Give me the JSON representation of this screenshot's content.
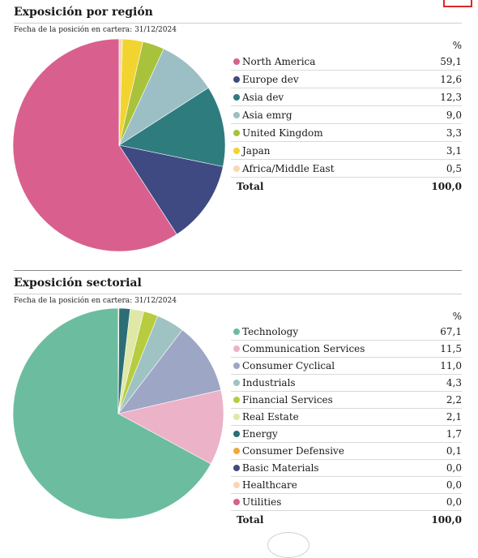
{
  "region": {
    "title": "Exposición por región",
    "date_label": "Fecha de la posición en cartera: 31/12/2024",
    "pct_header": "%",
    "total_label": "Total",
    "total_value": "100,0"
  },
  "sector": {
    "title": "Exposición sectorial",
    "date_label": "Fecha de la posición en cartera: 31/12/2024",
    "pct_header": "%",
    "total_label": "Total",
    "total_value": "100,0"
  },
  "chart_data": [
    {
      "type": "pie",
      "title": "Exposición por región",
      "categories": [
        "North America",
        "Europe dev",
        "Asia dev",
        "Asia emrg",
        "United Kingdom",
        "Japan",
        "Africa/Middle East"
      ],
      "values": [
        59.1,
        12.6,
        12.3,
        9.0,
        3.3,
        3.1,
        0.5
      ],
      "labels": [
        "59,1",
        "12,6",
        "12,3",
        "9,0",
        "3,3",
        "3,1",
        "0,5"
      ],
      "colors": [
        "#d9608e",
        "#3f4a82",
        "#2f7c7e",
        "#9bbfc4",
        "#a9c23c",
        "#f2d431",
        "#f6d8b4"
      ]
    },
    {
      "type": "pie",
      "title": "Exposición sectorial",
      "categories": [
        "Technology",
        "Communication Services",
        "Consumer Cyclical",
        "Industrials",
        "Financial Services",
        "Real Estate",
        "Energy",
        "Consumer Defensive",
        "Basic Materials",
        "Healthcare",
        "Utilities"
      ],
      "values": [
        67.1,
        11.5,
        11.0,
        4.3,
        2.2,
        2.1,
        1.7,
        0.1,
        0.0,
        0.0,
        0.0
      ],
      "labels": [
        "67,1",
        "11,5",
        "11,0",
        "4,3",
        "2,2",
        "2,1",
        "1,7",
        "0,1",
        "0,0",
        "0,0",
        "0,0"
      ],
      "colors": [
        "#6cbd9f",
        "#ecb2c8",
        "#9ea6c6",
        "#9fc3c2",
        "#b7cc3e",
        "#dfe8a6",
        "#2c6e76",
        "#f0a93a",
        "#3f4a82",
        "#f6d8b4",
        "#d9608e"
      ]
    }
  ]
}
